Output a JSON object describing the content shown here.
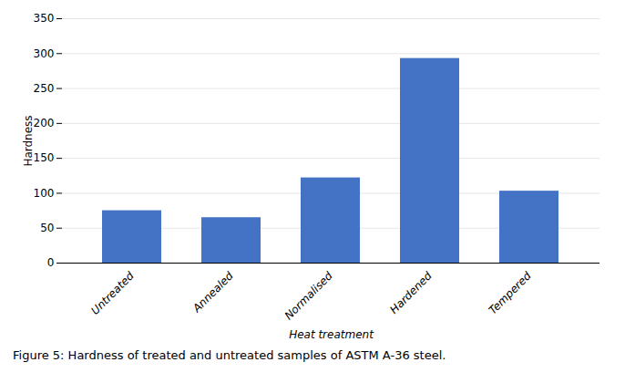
{
  "chart_data": {
    "type": "bar",
    "categories": [
      "Untreated",
      "Annealed",
      "Normalised",
      "Hardened",
      "Tempered"
    ],
    "values": [
      75,
      65,
      122,
      293,
      103
    ],
    "color": "#4472C4",
    "xlabel": "Heat treatment",
    "ylabel": "Hardness",
    "ylim": [
      0,
      350
    ],
    "yticks": [
      0,
      50,
      100,
      150,
      200,
      250,
      300,
      350
    ],
    "grid": true,
    "caption": "Figure 5: Hardness of treated and untreated samples of ASTM A-36 steel."
  }
}
